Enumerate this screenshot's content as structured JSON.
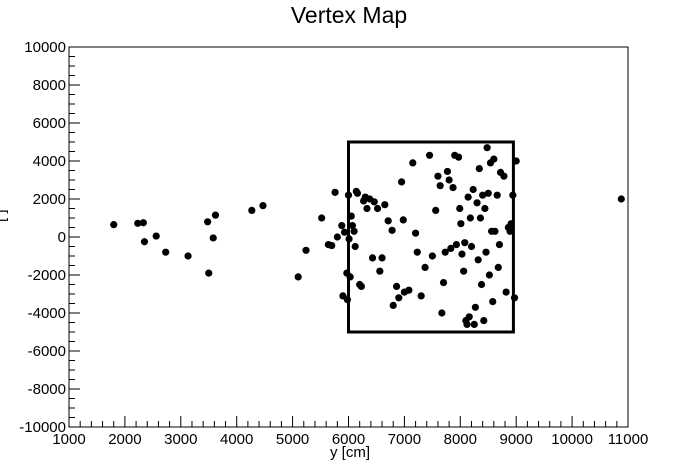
{
  "chart_data": {
    "type": "scatter",
    "title": "Vertex Map",
    "xlabel": "y [cm]",
    "ylabel": "[ ]",
    "xlim": [
      1000,
      11000
    ],
    "ylim": [
      -10000,
      10000
    ],
    "x_ticks": [
      1000,
      2000,
      3000,
      4000,
      5000,
      6000,
      7000,
      8000,
      9000,
      10000,
      11000
    ],
    "y_ticks": [
      -10000,
      -8000,
      -6000,
      -4000,
      -2000,
      0,
      2000,
      4000,
      6000,
      8000,
      10000
    ],
    "box": {
      "x0": 6000,
      "x1": 8950,
      "y0": -5000,
      "y1": 5000
    },
    "marker_color": "#000000",
    "grid": false,
    "points": [
      [
        1800,
        650
      ],
      [
        2230,
        720
      ],
      [
        2330,
        750
      ],
      [
        2350,
        -250
      ],
      [
        2560,
        50
      ],
      [
        2730,
        -800
      ],
      [
        3130,
        -1000
      ],
      [
        3480,
        800
      ],
      [
        3500,
        -1900
      ],
      [
        3580,
        -50
      ],
      [
        3620,
        1150
      ],
      [
        4270,
        1400
      ],
      [
        4470,
        1650
      ],
      [
        5100,
        -2100
      ],
      [
        5240,
        -700
      ],
      [
        5520,
        1000
      ],
      [
        5640,
        -400
      ],
      [
        5700,
        -450
      ],
      [
        5760,
        2350
      ],
      [
        5800,
        0
      ],
      [
        5880,
        600
      ],
      [
        5900,
        -3100
      ],
      [
        5930,
        250
      ],
      [
        5970,
        -1900
      ],
      [
        5980,
        -3300
      ],
      [
        6000,
        2200
      ],
      [
        6010,
        -100
      ],
      [
        6030,
        -2100
      ],
      [
        6050,
        1100
      ],
      [
        6070,
        600
      ],
      [
        6100,
        300
      ],
      [
        6120,
        -500
      ],
      [
        6140,
        2400
      ],
      [
        6160,
        2300
      ],
      [
        6200,
        -2500
      ],
      [
        6230,
        -2600
      ],
      [
        6270,
        1900
      ],
      [
        6300,
        2100
      ],
      [
        6330,
        1500
      ],
      [
        6380,
        2000
      ],
      [
        6430,
        -1100
      ],
      [
        6460,
        1850
      ],
      [
        6520,
        1500
      ],
      [
        6560,
        -1800
      ],
      [
        6600,
        -1100
      ],
      [
        6650,
        1700
      ],
      [
        6710,
        850
      ],
      [
        6780,
        350
      ],
      [
        6800,
        -3600
      ],
      [
        6860,
        -2600
      ],
      [
        6900,
        -3200
      ],
      [
        6950,
        2900
      ],
      [
        6980,
        900
      ],
      [
        7000,
        -2900
      ],
      [
        7080,
        -2800
      ],
      [
        7150,
        3900
      ],
      [
        7200,
        200
      ],
      [
        7230,
        -800
      ],
      [
        7300,
        -3100
      ],
      [
        7370,
        -1600
      ],
      [
        7450,
        4300
      ],
      [
        7500,
        -1000
      ],
      [
        7560,
        1400
      ],
      [
        7600,
        3200
      ],
      [
        7640,
        2700
      ],
      [
        7670,
        -4000
      ],
      [
        7700,
        -2400
      ],
      [
        7730,
        -800
      ],
      [
        7770,
        3450
      ],
      [
        7800,
        3000
      ],
      [
        7830,
        -600
      ],
      [
        7870,
        2600
      ],
      [
        7900,
        4300
      ],
      [
        7930,
        -400
      ],
      [
        7970,
        4200
      ],
      [
        7990,
        1500
      ],
      [
        8010,
        700
      ],
      [
        8030,
        -900
      ],
      [
        8060,
        -1800
      ],
      [
        8080,
        -300
      ],
      [
        8100,
        -4400
      ],
      [
        8120,
        -4600
      ],
      [
        8140,
        2100
      ],
      [
        8160,
        -4200
      ],
      [
        8180,
        1000
      ],
      [
        8200,
        -500
      ],
      [
        8230,
        2500
      ],
      [
        8250,
        -4600
      ],
      [
        8270,
        -3700
      ],
      [
        8300,
        1800
      ],
      [
        8320,
        -1200
      ],
      [
        8340,
        3600
      ],
      [
        8360,
        1000
      ],
      [
        8380,
        -2500
      ],
      [
        8400,
        2200
      ],
      [
        8420,
        -4400
      ],
      [
        8440,
        1500
      ],
      [
        8460,
        -800
      ],
      [
        8480,
        4700
      ],
      [
        8500,
        2300
      ],
      [
        8520,
        -2000
      ],
      [
        8540,
        3900
      ],
      [
        8560,
        300
      ],
      [
        8580,
        -3400
      ],
      [
        8600,
        4100
      ],
      [
        8620,
        300
      ],
      [
        8660,
        2200
      ],
      [
        8680,
        -1600
      ],
      [
        8700,
        -400
      ],
      [
        8720,
        3400
      ],
      [
        8780,
        3200
      ],
      [
        8820,
        -2900
      ],
      [
        8860,
        500
      ],
      [
        8890,
        300
      ],
      [
        8910,
        700
      ],
      [
        8940,
        2200
      ],
      [
        8970,
        -3200
      ],
      [
        9000,
        4000
      ],
      [
        10880,
        2000
      ]
    ]
  }
}
